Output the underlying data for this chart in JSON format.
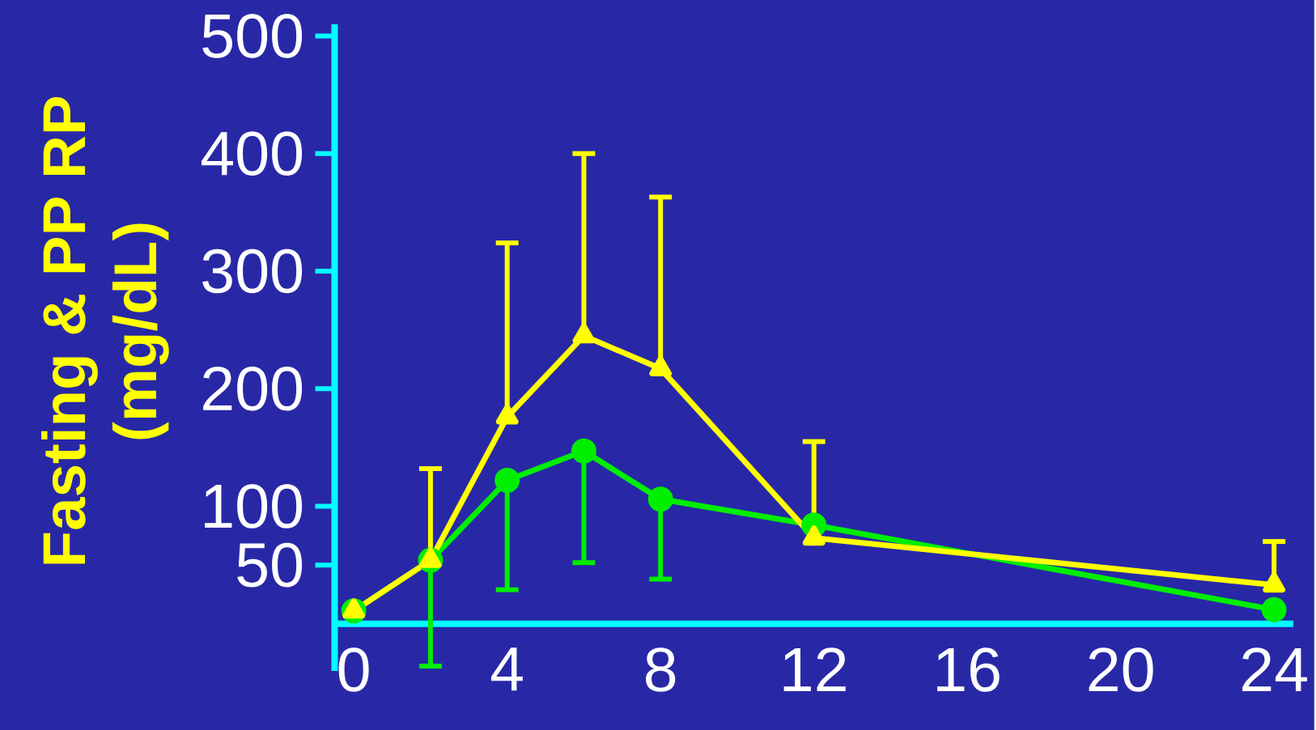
{
  "chart_data": {
    "type": "line",
    "ylabel": "Fasting & PP RP\n(mg/dL)",
    "x": [
      0,
      2,
      4,
      6,
      8,
      12,
      24
    ],
    "series": [
      {
        "color": "#ffff00",
        "marker": "triangle",
        "values": [
          11,
          54,
          176,
          245,
          217,
          73,
          33
        ],
        "errors": [
          null,
          [
            54,
            132
          ],
          [
            176,
            324
          ],
          [
            245,
            400
          ],
          [
            217,
            363
          ],
          [
            73,
            155
          ],
          [
            33,
            70
          ]
        ]
      },
      {
        "color": "#00ee00",
        "marker": "circle",
        "values": [
          11,
          54,
          122,
          147,
          106,
          84,
          12
        ],
        "errors": [
          null,
          [
            -36,
            54
          ],
          [
            29,
            122
          ],
          [
            52,
            147
          ],
          [
            38,
            106
          ],
          null,
          null
        ]
      }
    ],
    "xlim": [
      -0.5,
      24.5
    ],
    "ylim": [
      -40,
      510
    ],
    "xticks": [
      0,
      4,
      8,
      12,
      16,
      20,
      24
    ],
    "yticks": [
      50,
      100,
      200,
      300,
      400,
      500
    ],
    "grid": false
  }
}
